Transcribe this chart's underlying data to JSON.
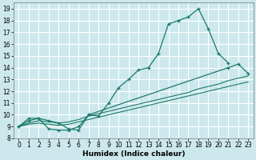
{
  "xlabel": "Humidex (Indice chaleur)",
  "bg_color": "#cce8ec",
  "line_color": "#1a7a6a",
  "grid_color": "#ffffff",
  "xlim": [
    -0.5,
    23.5
  ],
  "ylim": [
    8,
    19.5
  ],
  "xticks": [
    0,
    1,
    2,
    3,
    4,
    5,
    6,
    7,
    8,
    9,
    10,
    11,
    12,
    13,
    14,
    15,
    16,
    17,
    18,
    19,
    20,
    21,
    22,
    23
  ],
  "yticks": [
    8,
    9,
    10,
    11,
    12,
    13,
    14,
    15,
    16,
    17,
    18,
    19
  ],
  "lines": [
    {
      "x": [
        0,
        1,
        2,
        3,
        4,
        5,
        6,
        7,
        8,
        9,
        10,
        11,
        12,
        13,
        14,
        15,
        16,
        17,
        18,
        19,
        20,
        21
      ],
      "y": [
        9,
        9.7,
        9.7,
        8.8,
        8.7,
        8.7,
        9.0,
        10.0,
        9.9,
        11.0,
        12.3,
        13.0,
        13.8,
        14.0,
        15.2,
        17.7,
        18.0,
        18.3,
        19.0,
        17.3,
        15.2,
        14.4
      ],
      "marker": true,
      "lw": 0.9
    },
    {
      "x": [
        0,
        1,
        2,
        3,
        4,
        5,
        6,
        7,
        8,
        9,
        10,
        11,
        12,
        13,
        14,
        15,
        16,
        17,
        18,
        19,
        20,
        21,
        22,
        23
      ],
      "y": [
        9.0,
        9.3,
        9.5,
        9.4,
        9.3,
        9.4,
        9.6,
        9.9,
        10.1,
        10.3,
        10.5,
        10.7,
        10.9,
        11.1,
        11.3,
        11.5,
        11.7,
        11.9,
        12.2,
        12.4,
        12.6,
        12.9,
        13.1,
        13.3
      ],
      "marker": false,
      "lw": 0.8
    },
    {
      "x": [
        0,
        1,
        2,
        3,
        4,
        5,
        6,
        7,
        8,
        9,
        10,
        11,
        12,
        13,
        14,
        15,
        16,
        17,
        18,
        19,
        20,
        21,
        22,
        23
      ],
      "y": [
        9.0,
        9.2,
        9.3,
        9.2,
        9.1,
        9.2,
        9.4,
        9.6,
        9.8,
        10.0,
        10.2,
        10.4,
        10.6,
        10.8,
        11.0,
        11.2,
        11.4,
        11.6,
        11.8,
        12.0,
        12.2,
        12.4,
        12.6,
        12.8
      ],
      "marker": false,
      "lw": 0.8
    },
    {
      "x": [
        0,
        1,
        2,
        3,
        4,
        5,
        6,
        7,
        21,
        22,
        23
      ],
      "y": [
        9.0,
        9.5,
        9.7,
        9.5,
        9.3,
        8.8,
        8.7,
        10.0,
        14.0,
        14.3,
        13.5
      ],
      "marker": true,
      "lw": 0.9
    }
  ]
}
